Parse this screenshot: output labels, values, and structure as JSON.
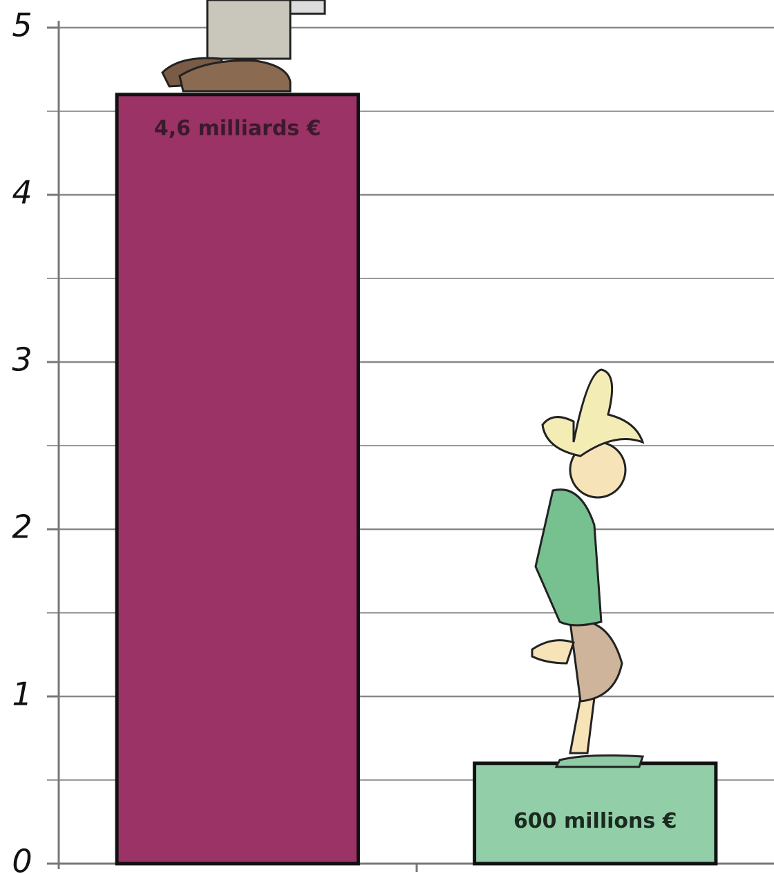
{
  "chart_data": {
    "type": "bar",
    "categories": [
      null,
      null
    ],
    "values": [
      4.6,
      0.6
    ],
    "value_labels": [
      "4,6 milliards €",
      "600 millions €"
    ],
    "colors": [
      "#9b3366",
      "#92cfa8"
    ],
    "ylim": [
      0,
      5
    ],
    "yticks": [
      0,
      1,
      2,
      3,
      4,
      5
    ],
    "minor_yticks": [
      0.5,
      1.5,
      2.5,
      3.5,
      4.5
    ],
    "grid": true
  }
}
